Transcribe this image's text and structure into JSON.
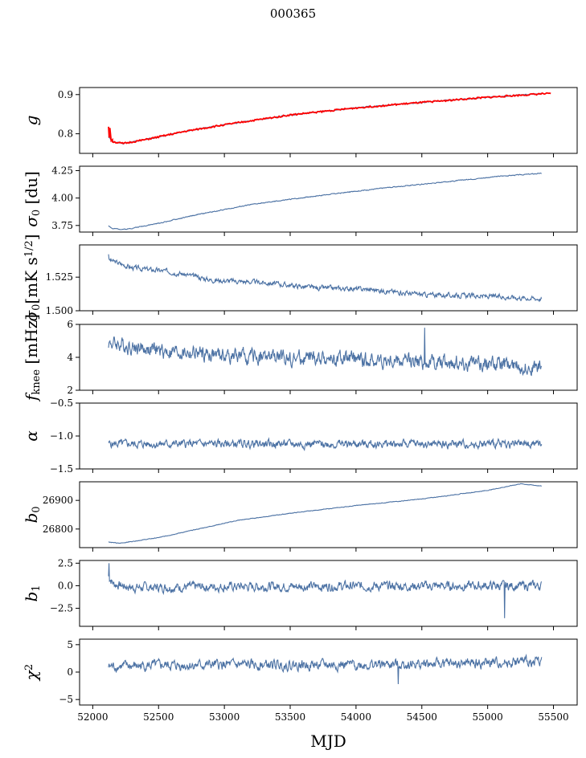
{
  "figure_title": "000365",
  "colors": {
    "series": "#4c72a4",
    "fit": "#ff0000",
    "axis": "#000000"
  },
  "chart_data": {
    "type": "line",
    "xlabel": "MJD",
    "xlim": [
      51900,
      55680
    ],
    "xticks": [
      52000,
      52500,
      53000,
      53500,
      54000,
      54500,
      55000,
      55500
    ],
    "xtick_labels": [
      "52000",
      "52500",
      "53000",
      "53500",
      "54000",
      "54500",
      "55000",
      "55500"
    ],
    "x_range": [
      52120,
      55410
    ],
    "panels": [
      {
        "id": "g",
        "ylabel": "g",
        "ylim": [
          0.75,
          0.918
        ],
        "yticks": [
          0.8,
          0.9
        ],
        "ytick_labels": [
          "0.8",
          "0.9"
        ],
        "trend": [
          [
            52120,
            0.792
          ],
          [
            52150,
            0.78
          ],
          [
            52230,
            0.775
          ],
          [
            52400,
            0.785
          ],
          [
            52700,
            0.806
          ],
          [
            53000,
            0.823
          ],
          [
            53500,
            0.848
          ],
          [
            54000,
            0.866
          ],
          [
            54500,
            0.88
          ],
          [
            55000,
            0.893
          ],
          [
            55410,
            0.902
          ]
        ],
        "noise": 0.0015,
        "seed": 1,
        "overlay": {
          "name": "fit",
          "color": "#ff0000",
          "x_end": 55480,
          "points": [
            [
              52120,
              0.818
            ],
            [
              52125,
              0.79
            ],
            [
              52130,
              0.815
            ],
            [
              52140,
              0.782
            ],
            [
              52150,
              0.785
            ]
          ]
        }
      },
      {
        "id": "sigma0_du",
        "ylabel": "σ0 [du]",
        "ylim": [
          3.69,
          4.29
        ],
        "yticks": [
          3.75,
          4.0,
          4.25
        ],
        "ytick_labels": [
          "3.75",
          "4.00",
          "4.25"
        ],
        "trend": [
          [
            52120,
            3.75
          ],
          [
            52150,
            3.72
          ],
          [
            52250,
            3.715
          ],
          [
            52500,
            3.77
          ],
          [
            52800,
            3.85
          ],
          [
            53200,
            3.94
          ],
          [
            53700,
            4.02
          ],
          [
            54200,
            4.09
          ],
          [
            54700,
            4.15
          ],
          [
            55100,
            4.2
          ],
          [
            55410,
            4.225
          ]
        ],
        "noise": 0.004,
        "seed": 2
      },
      {
        "id": "sigma0_mk",
        "ylabel": "σ0[mK s^1/2]",
        "ylim": [
          1.5,
          1.549
        ],
        "yticks": [
          1.5,
          1.525
        ],
        "ytick_labels": [
          "1.500",
          "1.525"
        ],
        "trend": [
          [
            52120,
            1.538
          ],
          [
            52300,
            1.532
          ],
          [
            52600,
            1.529
          ],
          [
            52900,
            1.523
          ],
          [
            53300,
            1.521
          ],
          [
            53700,
            1.517
          ],
          [
            54100,
            1.516
          ],
          [
            54500,
            1.512
          ],
          [
            54900,
            1.511
          ],
          [
            55200,
            1.51
          ],
          [
            55410,
            1.509
          ]
        ],
        "noise": 0.0018,
        "seed": 3,
        "spike": [
          [
            52120,
            1.542
          ]
        ]
      },
      {
        "id": "fknee",
        "ylabel": "fknee [mHz]",
        "ylim": [
          2,
          6
        ],
        "yticks": [
          2,
          4,
          6
        ],
        "ytick_labels": [
          "2",
          "4",
          "6"
        ],
        "trend": [
          [
            52120,
            4.9
          ],
          [
            52500,
            4.4
          ],
          [
            53000,
            4.1
          ],
          [
            53500,
            3.95
          ],
          [
            54000,
            3.85
          ],
          [
            54500,
            3.75
          ],
          [
            55000,
            3.65
          ],
          [
            55410,
            3.4
          ]
        ],
        "noise": 0.45,
        "seed": 4,
        "spike": [
          [
            54520,
            5.8
          ]
        ]
      },
      {
        "id": "alpha",
        "ylabel": "α",
        "ylim": [
          -1.5,
          -0.5
        ],
        "yticks": [
          -1.5,
          -1.0,
          -0.5
        ],
        "ytick_labels": [
          "−1.5",
          "−1.0",
          "−0.5"
        ],
        "trend": [
          [
            52120,
            -1.12
          ],
          [
            55410,
            -1.12
          ]
        ],
        "noise": 0.06,
        "seed": 5
      },
      {
        "id": "b0",
        "ylabel": "b0",
        "ylim": [
          26735,
          26965
        ],
        "yticks": [
          26800,
          26900
        ],
        "ytick_labels": [
          "26800",
          "26900"
        ],
        "trend": [
          [
            52120,
            26755
          ],
          [
            52200,
            26750
          ],
          [
            52500,
            26770
          ],
          [
            52800,
            26800
          ],
          [
            53100,
            26830
          ],
          [
            53500,
            26855
          ],
          [
            54000,
            26882
          ],
          [
            54500,
            26905
          ],
          [
            55000,
            26935
          ],
          [
            55250,
            26958
          ],
          [
            55410,
            26950
          ]
        ],
        "noise": 1.0,
        "seed": 6
      },
      {
        "id": "b1",
        "ylabel": "b1",
        "ylim": [
          -4.5,
          2.8
        ],
        "yticks": [
          -2.5,
          0.0,
          2.5
        ],
        "ytick_labels": [
          "−2.5",
          "0.0",
          "2.5"
        ],
        "trend": [
          [
            52120,
            1.0
          ],
          [
            52160,
            0.2
          ],
          [
            52300,
            -0.2
          ],
          [
            53000,
            -0.1
          ],
          [
            54000,
            -0.05
          ],
          [
            55410,
            0.0
          ]
        ],
        "noise": 0.5,
        "seed": 7,
        "spike": [
          [
            52125,
            2.5
          ],
          [
            55130,
            -3.6
          ]
        ]
      },
      {
        "id": "chi2",
        "ylabel": "χ2",
        "ylim": [
          -6,
          6
        ],
        "yticks": [
          -5,
          0,
          5
        ],
        "ytick_labels": [
          "−5",
          "0",
          "5"
        ],
        "trend": [
          [
            52120,
            1.0
          ],
          [
            52500,
            1.2
          ],
          [
            53000,
            1.3
          ],
          [
            54000,
            1.3
          ],
          [
            55000,
            1.6
          ],
          [
            55410,
            2.0
          ]
        ],
        "noise": 0.9,
        "seed": 8,
        "spike": [
          [
            54320,
            -2.2
          ]
        ]
      }
    ]
  }
}
